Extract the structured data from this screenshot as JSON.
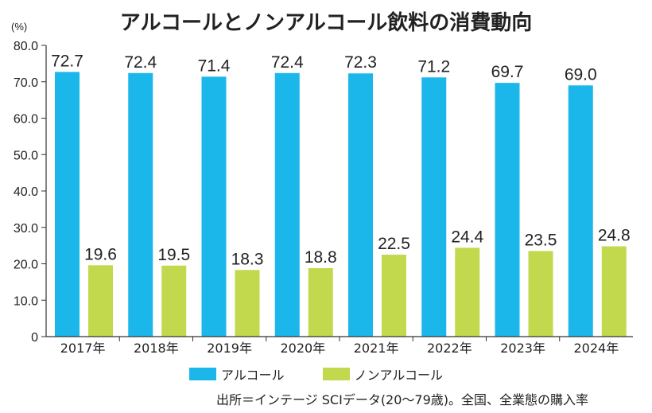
{
  "chart_data": {
    "type": "bar",
    "title": "アルコールとノンアルコール飲料の消費動向",
    "unit": "(%)",
    "categories": [
      "2017年",
      "2018年",
      "2019年",
      "2020年",
      "2021年",
      "2022年",
      "2023年",
      "2024年"
    ],
    "series": [
      {
        "name": "アルコール",
        "color": "#1cb7ea",
        "values": [
          72.7,
          72.4,
          71.4,
          72.4,
          72.3,
          71.2,
          69.7,
          69.0
        ]
      },
      {
        "name": "ノンアルコール",
        "color": "#c2d84d",
        "values": [
          19.6,
          19.5,
          18.3,
          18.8,
          22.5,
          24.4,
          23.5,
          24.8
        ]
      }
    ],
    "ylim": [
      0,
      80
    ],
    "yticks": [
      "0",
      "10.0",
      "20.0",
      "30.0",
      "40.0",
      "50.0",
      "60.0",
      "70.0",
      "80.0"
    ],
    "grid": false,
    "legend_position": "bottom",
    "source": "出所＝インテージ SCIデータ(20〜79歳)。全国、全業態の購入率"
  }
}
